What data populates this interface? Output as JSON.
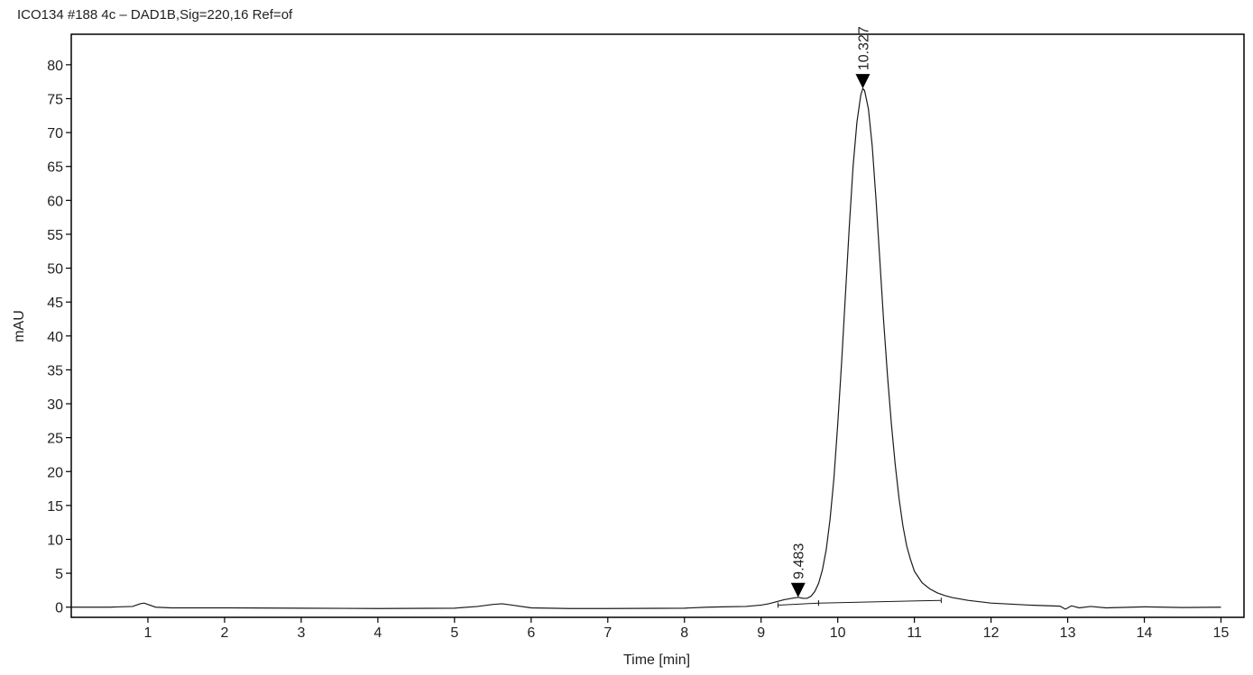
{
  "chart_data": {
    "type": "line",
    "title": "ICO134 #188 4c – DAD1B,Sig=220,16  Ref=of",
    "xlabel": "Time [min]",
    "ylabel": "mAU",
    "xlim": [
      0,
      15.3
    ],
    "ylim": [
      -1.5,
      84.5
    ],
    "x_ticks": [
      1,
      2,
      3,
      4,
      5,
      6,
      7,
      8,
      9,
      10,
      11,
      12,
      13,
      14,
      15
    ],
    "y_ticks": [
      0,
      5,
      10,
      15,
      20,
      25,
      30,
      35,
      40,
      45,
      50,
      55,
      60,
      65,
      70,
      75,
      80
    ],
    "grid": false,
    "series": [
      {
        "x": [
          0.0,
          0.5,
          0.8,
          0.9,
          0.95,
          1.0,
          1.1,
          1.3,
          2.0,
          3.0,
          4.0,
          5.0,
          5.3,
          5.5,
          5.62,
          5.75,
          6.0,
          6.5,
          7.0,
          8.0,
          8.3,
          8.5,
          8.8,
          9.0,
          9.1,
          9.2,
          9.3,
          9.4,
          9.483,
          9.55,
          9.6,
          9.65,
          9.7,
          9.75,
          9.8,
          9.85,
          9.9,
          9.95,
          10.0,
          10.05,
          10.1,
          10.15,
          10.2,
          10.25,
          10.3,
          10.327,
          10.35,
          10.4,
          10.45,
          10.5,
          10.55,
          10.6,
          10.65,
          10.7,
          10.75,
          10.8,
          10.85,
          10.9,
          10.95,
          11.0,
          11.1,
          11.2,
          11.3,
          11.4,
          11.5,
          11.7,
          12.0,
          12.5,
          12.9,
          12.97,
          13.05,
          13.15,
          13.3,
          13.5,
          14.0,
          14.5,
          15.0
        ],
        "y": [
          0.0,
          0.0,
          0.1,
          0.5,
          0.6,
          0.4,
          0.0,
          -0.1,
          -0.1,
          -0.15,
          -0.2,
          -0.15,
          0.1,
          0.4,
          0.5,
          0.3,
          -0.1,
          -0.2,
          -0.2,
          -0.15,
          0.0,
          0.05,
          0.1,
          0.3,
          0.5,
          0.8,
          1.1,
          1.3,
          1.45,
          1.3,
          1.3,
          1.6,
          2.3,
          3.5,
          5.5,
          8.5,
          13.0,
          19.0,
          27.0,
          36.0,
          46.0,
          56.0,
          65.0,
          71.5,
          75.5,
          76.5,
          76.2,
          73.5,
          68.0,
          60.0,
          51.0,
          42.0,
          34.0,
          27.0,
          21.0,
          16.0,
          12.0,
          9.0,
          7.0,
          5.3,
          3.6,
          2.7,
          2.1,
          1.7,
          1.4,
          1.0,
          0.6,
          0.3,
          0.15,
          -0.3,
          0.2,
          -0.1,
          0.1,
          -0.1,
          0.05,
          -0.05,
          0.0
        ]
      }
    ],
    "baselines": [
      {
        "x": [
          9.22,
          9.75
        ],
        "y": [
          0.3,
          0.6
        ]
      },
      {
        "x": [
          9.75,
          11.35
        ],
        "y": [
          0.6,
          1.0
        ]
      }
    ],
    "peaks": [
      {
        "label": "9.483",
        "x": 9.483,
        "y": 1.45
      },
      {
        "label": "10.327",
        "x": 10.327,
        "y": 76.5
      }
    ]
  }
}
